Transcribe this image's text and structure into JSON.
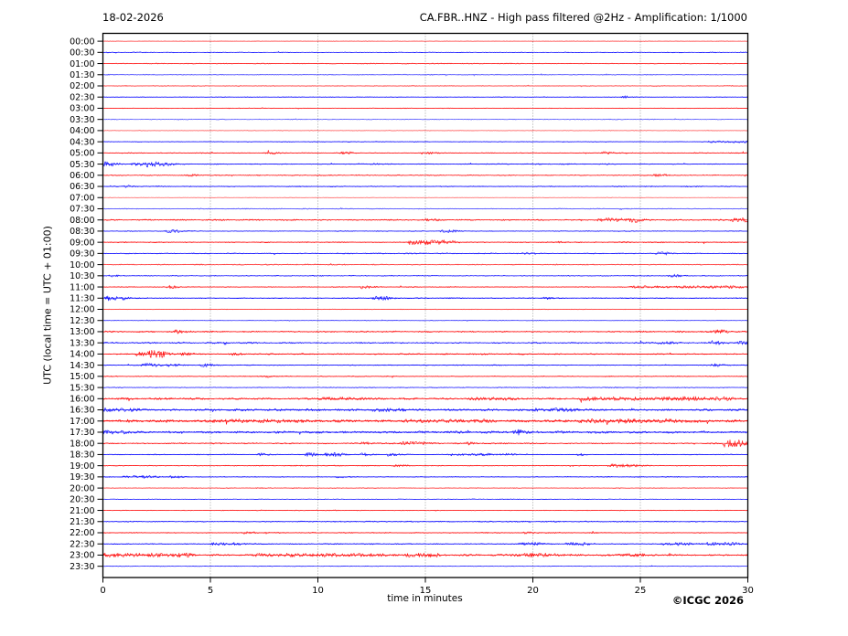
{
  "header": {
    "date": "18-02-2026",
    "title": "CA.FBR..HNZ - High pass filtered @2Hz - Amplification: 1/1000"
  },
  "axis": {
    "ylabel": "UTC (local time = UTC + 01:00)",
    "xlabel": "time in minutes"
  },
  "footer": {
    "credit": "©ICGC 2026"
  },
  "chart_data": {
    "type": "line",
    "subtype": "helicorder-daily-seismogram",
    "station": "CA.FBR..HNZ",
    "title": "CA.FBR..HNZ - High pass filtered @2Hz - Amplification: 1/1000",
    "date": "18-02-2026",
    "xlabel": "time in minutes",
    "ylabel": "UTC (local time = UTC + 01:00)",
    "xlim": [
      0,
      30
    ],
    "x_ticks": [
      0,
      5,
      10,
      15,
      20,
      25,
      30
    ],
    "gridlines_minutes": [
      5,
      10,
      15,
      20,
      25
    ],
    "grid_color": "#888888",
    "colors": {
      "red": "#ff0000",
      "blue": "#0000ff"
    },
    "rows": [
      {
        "label": "00:00",
        "c": "r",
        "amp": 0.35,
        "op": 0.55,
        "events": []
      },
      {
        "label": "00:30",
        "c": "b",
        "amp": 0.5,
        "op": 0.8,
        "events": []
      },
      {
        "label": "01:00",
        "c": "r",
        "amp": 0.6,
        "op": 0.75,
        "events": []
      },
      {
        "label": "01:30",
        "c": "b",
        "amp": 0.7,
        "op": 0.5,
        "events": []
      },
      {
        "label": "02:00",
        "c": "r",
        "amp": 0.6,
        "op": 0.6,
        "events": []
      },
      {
        "label": "02:30",
        "c": "b",
        "amp": 0.4,
        "op": 0.85,
        "events": [
          [
            24.1,
            24.4,
            1.2
          ]
        ]
      },
      {
        "label": "03:00",
        "c": "r",
        "amp": 0.45,
        "op": 0.8,
        "events": []
      },
      {
        "label": "03:30",
        "c": "b",
        "amp": 0.6,
        "op": 0.5,
        "events": []
      },
      {
        "label": "04:00",
        "c": "r",
        "amp": 0.5,
        "op": 0.45,
        "events": []
      },
      {
        "label": "04:30",
        "c": "b",
        "amp": 0.5,
        "op": 0.8,
        "events": [
          [
            28.1,
            29.9,
            0.9
          ]
        ]
      },
      {
        "label": "05:00",
        "c": "r",
        "amp": 0.55,
        "op": 0.8,
        "events": [
          [
            7.5,
            8.0,
            1.0
          ],
          [
            11.0,
            11.5,
            1.0
          ],
          [
            14.8,
            15.3,
            1.3
          ],
          [
            23.2,
            23.6,
            1.1
          ]
        ]
      },
      {
        "label": "05:30",
        "c": "b",
        "amp": 0.6,
        "op": 0.9,
        "events": [
          [
            0.0,
            0.4,
            2.2
          ],
          [
            1.3,
            2.0,
            1.3
          ],
          [
            2.0,
            2.6,
            2.2
          ],
          [
            2.6,
            3.2,
            1.1
          ],
          [
            12.4,
            12.7,
            0.9
          ]
        ]
      },
      {
        "label": "06:00",
        "c": "r",
        "amp": 0.7,
        "op": 0.8,
        "events": [
          [
            3.8,
            4.3,
            1.0
          ],
          [
            25.6,
            26.1,
            1.1
          ]
        ]
      },
      {
        "label": "06:30",
        "c": "b",
        "amp": 0.7,
        "op": 0.8,
        "events": [
          [
            1.0,
            1.3,
            0.9
          ]
        ]
      },
      {
        "label": "07:00",
        "c": "r",
        "amp": 0.45,
        "op": 0.4,
        "events": []
      },
      {
        "label": "07:30",
        "c": "b",
        "amp": 0.7,
        "op": 0.5,
        "events": []
      },
      {
        "label": "08:00",
        "c": "r",
        "amp": 0.9,
        "op": 0.85,
        "events": [
          [
            15.0,
            15.4,
            0.9
          ],
          [
            23.0,
            24.2,
            1.9
          ],
          [
            24.5,
            24.9,
            2.2
          ],
          [
            29.2,
            30.0,
            1.7
          ]
        ]
      },
      {
        "label": "08:30",
        "c": "b",
        "amp": 0.6,
        "op": 0.8,
        "events": [
          [
            2.9,
            3.5,
            1.4
          ],
          [
            15.7,
            16.3,
            1.2
          ]
        ]
      },
      {
        "label": "09:00",
        "c": "r",
        "amp": 0.7,
        "op": 0.85,
        "events": [
          [
            14.2,
            16.2,
            2.2
          ],
          [
            21.0,
            21.3,
            0.9
          ]
        ]
      },
      {
        "label": "09:30",
        "c": "b",
        "amp": 0.7,
        "op": 0.8,
        "events": [
          [
            19.5,
            20.0,
            0.8
          ],
          [
            25.7,
            26.2,
            1.3
          ]
        ]
      },
      {
        "label": "10:00",
        "c": "r",
        "amp": 0.8,
        "op": 0.6,
        "events": []
      },
      {
        "label": "10:30",
        "c": "b",
        "amp": 0.6,
        "op": 0.8,
        "events": [
          [
            0.3,
            0.6,
            1.0
          ],
          [
            26.3,
            26.7,
            1.2
          ]
        ]
      },
      {
        "label": "11:00",
        "c": "r",
        "amp": 0.55,
        "op": 0.85,
        "events": [
          [
            2.9,
            3.3,
            1.5
          ],
          [
            11.9,
            12.3,
            1.5
          ],
          [
            24.5,
            29.7,
            1.1
          ]
        ]
      },
      {
        "label": "11:30",
        "c": "b",
        "amp": 0.6,
        "op": 0.9,
        "events": [
          [
            0.0,
            0.9,
            2.4
          ],
          [
            12.5,
            13.3,
            1.7
          ],
          [
            20.4,
            20.7,
            1.0
          ]
        ]
      },
      {
        "label": "12:00",
        "c": "r",
        "amp": 0.45,
        "op": 0.6,
        "events": []
      },
      {
        "label": "12:30",
        "c": "b",
        "amp": 0.45,
        "op": 0.6,
        "events": []
      },
      {
        "label": "13:00",
        "c": "r",
        "amp": 1.0,
        "op": 0.85,
        "events": [
          [
            3.3,
            3.7,
            1.4
          ],
          [
            28.3,
            28.9,
            1.6
          ]
        ]
      },
      {
        "label": "13:30",
        "c": "b",
        "amp": 1.0,
        "op": 0.85,
        "events": [
          [
            25.8,
            26.3,
            1.3
          ],
          [
            28.2,
            28.6,
            1.6
          ],
          [
            29.5,
            29.8,
            1.3
          ]
        ]
      },
      {
        "label": "14:00",
        "c": "r",
        "amp": 0.8,
        "op": 0.9,
        "events": [
          [
            1.5,
            1.9,
            1.9
          ],
          [
            2.1,
            2.8,
            3.2
          ],
          [
            3.5,
            4.0,
            1.3
          ],
          [
            5.9,
            6.3,
            1.1
          ]
        ]
      },
      {
        "label": "14:30",
        "c": "b",
        "amp": 0.6,
        "op": 0.85,
        "events": [
          [
            1.8,
            2.5,
            1.8
          ],
          [
            3.0,
            3.4,
            1.3
          ],
          [
            4.5,
            4.9,
            1.4
          ],
          [
            28.3,
            28.6,
            1.4
          ]
        ]
      },
      {
        "label": "15:00",
        "c": "r",
        "amp": 0.6,
        "op": 0.8,
        "events": [
          [
            7.3,
            7.7,
            1.0
          ]
        ]
      },
      {
        "label": "15:30",
        "c": "b",
        "amp": 0.7,
        "op": 0.7,
        "events": []
      },
      {
        "label": "16:00",
        "c": "r",
        "amp": 1.3,
        "op": 0.9,
        "events": [
          [
            10.0,
            12.0,
            1.0
          ],
          [
            17.0,
            19.0,
            1.0
          ],
          [
            22.0,
            25.0,
            1.2
          ],
          [
            26.0,
            29.0,
            1.3
          ]
        ]
      },
      {
        "label": "16:30",
        "c": "b",
        "amp": 1.4,
        "op": 0.9,
        "events": [
          [
            0.0,
            1.5,
            1.2
          ],
          [
            12.5,
            14.0,
            1.0
          ],
          [
            20.0,
            22.0,
            1.0
          ]
        ]
      },
      {
        "label": "17:00",
        "c": "r",
        "amp": 1.8,
        "op": 0.95,
        "events": [
          [
            5.0,
            9.0,
            0.8
          ],
          [
            14.0,
            18.0,
            0.8
          ],
          [
            22.0,
            27.0,
            0.9
          ]
        ]
      },
      {
        "label": "17:30",
        "c": "b",
        "amp": 1.5,
        "op": 0.9,
        "events": [
          [
            0.0,
            1.0,
            1.3
          ],
          [
            19.1,
            19.4,
            2.2
          ]
        ]
      },
      {
        "label": "18:00",
        "c": "r",
        "amp": 0.9,
        "op": 0.85,
        "events": [
          [
            12.0,
            12.4,
            1.3
          ],
          [
            13.8,
            14.8,
            1.7
          ],
          [
            16.8,
            17.2,
            1.1
          ],
          [
            28.8,
            29.6,
            3.8
          ]
        ]
      },
      {
        "label": "18:30",
        "c": "b",
        "amp": 0.5,
        "op": 0.9,
        "events": [
          [
            7.2,
            7.5,
            1.6
          ],
          [
            9.3,
            9.9,
            1.8
          ],
          [
            10.3,
            11.0,
            2.0
          ],
          [
            11.9,
            12.2,
            1.8
          ],
          [
            13.2,
            13.5,
            2.0
          ],
          [
            16.0,
            19.0,
            1.0
          ],
          [
            22.0,
            22.3,
            1.1
          ]
        ]
      },
      {
        "label": "19:00",
        "c": "r",
        "amp": 0.6,
        "op": 0.8,
        "events": [
          [
            13.5,
            14.0,
            1.0
          ],
          [
            23.5,
            24.8,
            1.6
          ]
        ]
      },
      {
        "label": "19:30",
        "c": "b",
        "amp": 0.55,
        "op": 0.85,
        "events": [
          [
            0.9,
            1.5,
            1.2
          ],
          [
            1.8,
            2.4,
            1.1
          ],
          [
            3.1,
            3.5,
            1.1
          ],
          [
            10.8,
            11.2,
            0.9
          ]
        ]
      },
      {
        "label": "20:00",
        "c": "r",
        "amp": 0.6,
        "op": 0.6,
        "events": []
      },
      {
        "label": "20:30",
        "c": "b",
        "amp": 0.45,
        "op": 0.8,
        "events": []
      },
      {
        "label": "21:00",
        "c": "r",
        "amp": 0.45,
        "op": 0.8,
        "events": []
      },
      {
        "label": "21:30",
        "c": "b",
        "amp": 0.8,
        "op": 0.8,
        "events": []
      },
      {
        "label": "22:00",
        "c": "r",
        "amp": 0.7,
        "op": 0.8,
        "events": [
          [
            6.5,
            7.0,
            1.0
          ],
          [
            19.5,
            20.0,
            0.9
          ]
        ]
      },
      {
        "label": "22:30",
        "c": "b",
        "amp": 0.7,
        "op": 0.85,
        "events": [
          [
            5.0,
            5.6,
            1.3
          ],
          [
            6.0,
            6.4,
            1.1
          ],
          [
            19.3,
            20.2,
            1.6
          ],
          [
            21.5,
            22.5,
            1.4
          ],
          [
            26.0,
            27.5,
            1.3
          ],
          [
            28.0,
            29.5,
            1.4
          ]
        ]
      },
      {
        "label": "23:00",
        "c": "r",
        "amp": 1.2,
        "op": 0.9,
        "events": [
          [
            0.0,
            4.0,
            1.5
          ],
          [
            7.0,
            13.0,
            1.2
          ],
          [
            14.0,
            15.5,
            1.5
          ],
          [
            19.0,
            21.0,
            1.3
          ],
          [
            24.0,
            25.0,
            1.2
          ]
        ]
      },
      {
        "label": "23:30",
        "c": "b",
        "amp": 0.35,
        "op": 0.8,
        "events": []
      }
    ]
  }
}
